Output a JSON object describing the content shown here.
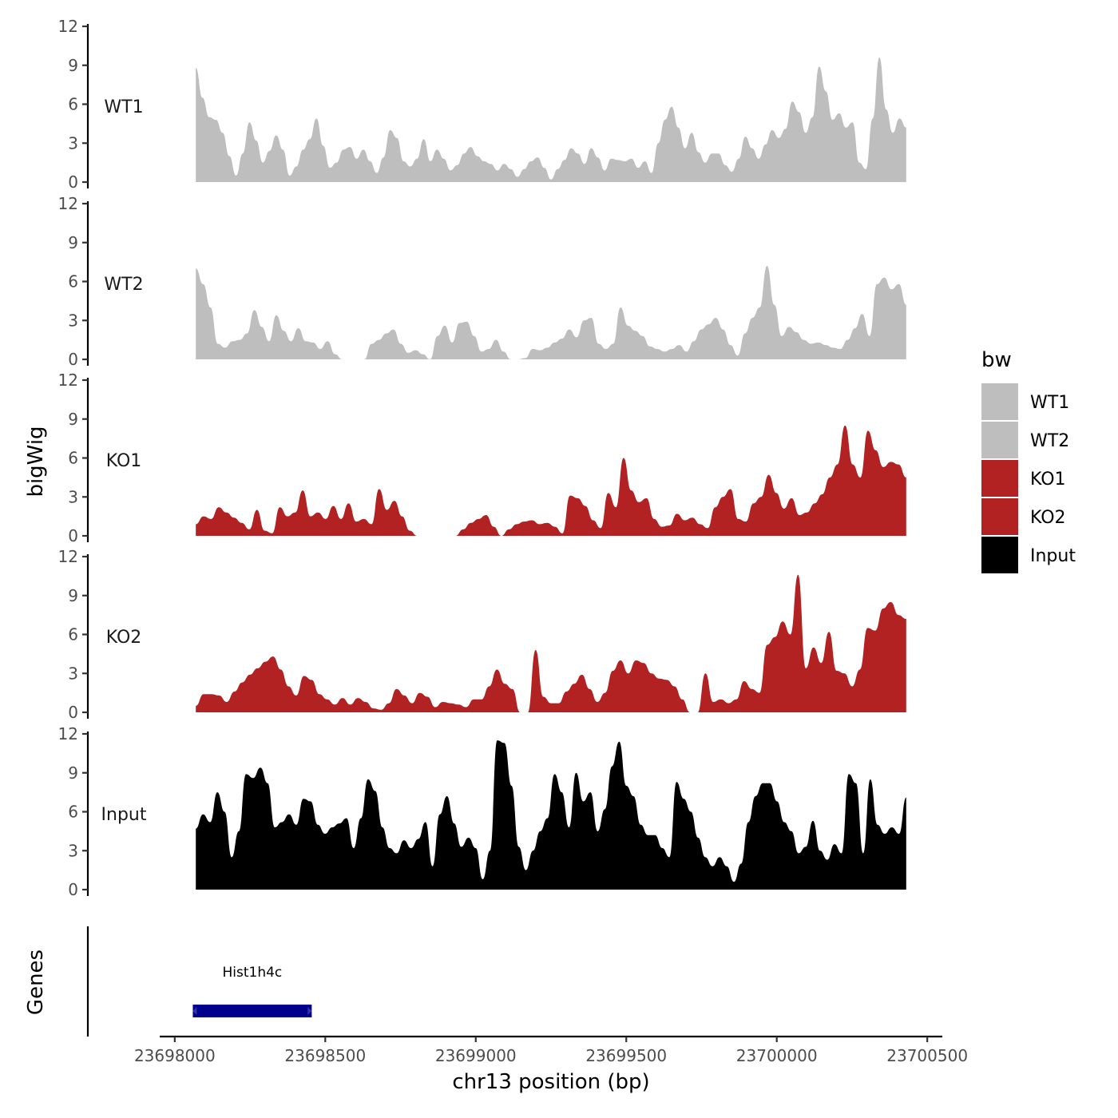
{
  "chart_data": {
    "type": "area",
    "chromosome": "chr13",
    "xlabel": "chr13 position (bp)",
    "ylabel": "bigWig",
    "genes_label": "Genes",
    "xlim": [
      23697950,
      23700550
    ],
    "x_ticks": [
      23698000,
      23698500,
      23699000,
      23699500,
      23700000,
      23700500
    ],
    "x_tick_labels": [
      "23698000",
      "23698500",
      "23699000",
      "23699500",
      "23700000",
      "23700500"
    ],
    "ylim": [
      0,
      12
    ],
    "y_ticks": [
      0,
      3,
      6,
      9,
      12
    ],
    "y_tick_labels": [
      "0",
      "3",
      "6",
      "9",
      "12"
    ],
    "x_start": 23698070,
    "x_end": 23700430,
    "series": [
      {
        "name": "WT1",
        "color": "#bebebe",
        "values": [
          8.8,
          6.5,
          5.0,
          4.8,
          3.8,
          2.0,
          0.5,
          2.2,
          4.6,
          3.2,
          1.5,
          2.4,
          3.6,
          2.5,
          0.5,
          1.2,
          2.5,
          3.3,
          4.9,
          2.8,
          1.1,
          1.5,
          2.5,
          2.7,
          1.8,
          2.5,
          1.6,
          0.7,
          1.9,
          4.0,
          3.4,
          1.6,
          1.2,
          1.8,
          3.3,
          1.6,
          2.5,
          1.8,
          0.9,
          1.3,
          2.2,
          2.7,
          2.0,
          1.6,
          1.4,
          0.9,
          1.4,
          1.0,
          0.4,
          1.0,
          1.6,
          1.9,
          1.1,
          0.2,
          1.0,
          1.7,
          2.6,
          2.2,
          1.4,
          2.6,
          1.9,
          0.9,
          1.8,
          1.7,
          1.6,
          1.8,
          1.1,
          1.6,
          0.7,
          3.0,
          4.8,
          5.8,
          4.2,
          2.6,
          3.8,
          2.3,
          1.5,
          2.2,
          2.2,
          1.3,
          0.8,
          1.8,
          3.5,
          2.6,
          1.8,
          2.9,
          4.0,
          3.4,
          4.1,
          6.2,
          5.4,
          3.8,
          5.0,
          8.9,
          7.0,
          4.8,
          5.3,
          4.2,
          4.6,
          1.5,
          1.0,
          4.9,
          9.6,
          5.6,
          3.8,
          4.9,
          4.2
        ]
      },
      {
        "name": "WT2",
        "color": "#bebebe",
        "values": [
          7.0,
          5.8,
          4.0,
          1.2,
          0.9,
          1.4,
          1.5,
          2.0,
          3.8,
          2.5,
          1.4,
          3.4,
          2.2,
          1.4,
          2.4,
          1.4,
          1.3,
          0.8,
          1.4,
          0.4,
          0,
          0,
          0,
          0,
          1.2,
          1.5,
          2.0,
          2.3,
          1.2,
          0.5,
          0.7,
          0.4,
          0,
          1.8,
          2.6,
          1.3,
          2.8,
          2.9,
          1.8,
          0.6,
          0.8,
          1.5,
          0.6,
          0,
          0,
          0.1,
          0.8,
          0.7,
          0.9,
          1.3,
          1.6,
          2.3,
          1.7,
          3.0,
          3.2,
          1.2,
          0.8,
          1.2,
          4.0,
          2.6,
          2.2,
          1.8,
          1.0,
          0.8,
          0.6,
          0.8,
          1.1,
          0.6,
          1.4,
          2.3,
          2.7,
          3.2,
          2.3,
          1.1,
          0.3,
          2.0,
          3.2,
          4.0,
          7.2,
          4.2,
          1.8,
          2.5,
          2.1,
          1.5,
          1.2,
          1.3,
          1.1,
          0.9,
          0.8,
          1.5,
          2.4,
          3.5,
          1.8,
          5.8,
          6.3,
          5.4,
          5.8,
          4.2
        ]
      },
      {
        "name": "KO1",
        "color": "#b22222",
        "values": [
          0.9,
          1.5,
          1.3,
          2.2,
          1.8,
          1.4,
          1.0,
          0.5,
          2.0,
          0.4,
          0.2,
          2.2,
          1.5,
          1.8,
          3.5,
          1.5,
          1.8,
          1.3,
          2.3,
          1.3,
          2.5,
          1.1,
          1.3,
          0.9,
          3.6,
          2.0,
          2.7,
          1.5,
          0.4,
          0,
          0,
          0,
          0,
          0,
          0,
          0.5,
          1.0,
          1.3,
          1.6,
          0.7,
          0,
          0.5,
          0.9,
          1.1,
          1.2,
          0.9,
          1.0,
          0.7,
          0.2,
          3.1,
          2.9,
          2.3,
          1.2,
          0.6,
          3.3,
          2.2,
          6.0,
          3.5,
          2.6,
          2.9,
          1.3,
          0.7,
          0.8,
          1.7,
          1.2,
          1.4,
          0.9,
          0.6,
          2.2,
          3.0,
          3.6,
          1.3,
          1.1,
          2.5,
          3.0,
          4.7,
          3.3,
          2.1,
          2.9,
          1.6,
          1.8,
          2.5,
          3.2,
          4.5,
          5.5,
          8.5,
          5.5,
          4.5,
          8.1,
          6.6,
          5.3,
          5.7,
          5.5,
          4.5
        ]
      },
      {
        "name": "KO2",
        "color": "#b22222",
        "values": [
          0.5,
          1.4,
          1.4,
          1.3,
          0.8,
          1.6,
          2.3,
          2.9,
          3.4,
          3.9,
          4.3,
          3.3,
          2.0,
          1.3,
          2.8,
          2.5,
          1.4,
          1.0,
          0.6,
          1.1,
          0.6,
          1.1,
          0.8,
          0.3,
          0.2,
          0.7,
          1.8,
          1.3,
          0.7,
          1.5,
          1.2,
          0.4,
          0.8,
          0.7,
          0.6,
          0.4,
          1.0,
          1.0,
          2.0,
          3.3,
          2.2,
          1.8,
          0,
          0,
          4.8,
          1.2,
          0.7,
          0.7,
          1.6,
          2.2,
          2.9,
          1.8,
          0.8,
          1.5,
          3.2,
          4.0,
          3.0,
          4.0,
          3.8,
          3.0,
          2.6,
          2.5,
          2.0,
          1.0,
          0,
          0,
          3.0,
          0.8,
          1.0,
          0.7,
          1.0,
          2.4,
          1.8,
          1.5,
          5.2,
          5.8,
          7.0,
          6.0,
          10.6,
          3.4,
          5.0,
          3.8,
          6.2,
          3.2,
          3.0,
          2.0,
          3.3,
          6.5,
          6.3,
          8.0,
          8.5,
          7.5,
          7.2
        ]
      },
      {
        "name": "Input",
        "color": "#000000",
        "values": [
          4.7,
          5.8,
          5.2,
          7.5,
          6.0,
          2.5,
          4.5,
          8.9,
          8.6,
          9.4,
          8.2,
          4.8,
          5.2,
          5.8,
          5.0,
          7.0,
          6.8,
          5.0,
          4.3,
          4.8,
          5.1,
          5.5,
          3.2,
          5.5,
          8.5,
          7.6,
          4.8,
          3.2,
          2.8,
          3.8,
          3.2,
          3.9,
          5.2,
          1.8,
          5.8,
          7.2,
          5.1,
          3.3,
          4.0,
          3.2,
          0.8,
          3.0,
          11.5,
          11.3,
          8.0,
          3.3,
          1.5,
          3.0,
          4.5,
          5.5,
          8.9,
          7.5,
          4.8,
          9.0,
          6.8,
          7.5,
          4.5,
          6.2,
          9.5,
          11.4,
          8.0,
          7.2,
          5.0,
          4.2,
          4.2,
          3.2,
          2.5,
          8.3,
          7.0,
          6.0,
          4.0,
          2.5,
          1.8,
          2.5,
          1.8,
          0.6,
          2.0,
          5.2,
          7.2,
          8.2,
          8.2,
          6.8,
          5.2,
          4.5,
          2.8,
          3.3,
          5.3,
          3.0,
          2.3,
          3.5,
          2.8,
          8.9,
          8.2,
          2.8,
          8.5,
          5.0,
          4.3,
          4.8,
          4.3,
          7.1
        ]
      }
    ],
    "legend": {
      "title": "bw",
      "position": "right",
      "items": [
        {
          "label": "WT1",
          "color": "#bebebe"
        },
        {
          "label": "WT2",
          "color": "#bebebe"
        },
        {
          "label": "KO1",
          "color": "#b22222"
        },
        {
          "label": "KO2",
          "color": "#b22222"
        },
        {
          "label": "Input",
          "color": "#000000"
        }
      ]
    },
    "genes": [
      {
        "name": "Hist1h4c",
        "start": 23698060,
        "end": 23698455,
        "strand": "+",
        "color": "#00008b"
      }
    ]
  }
}
